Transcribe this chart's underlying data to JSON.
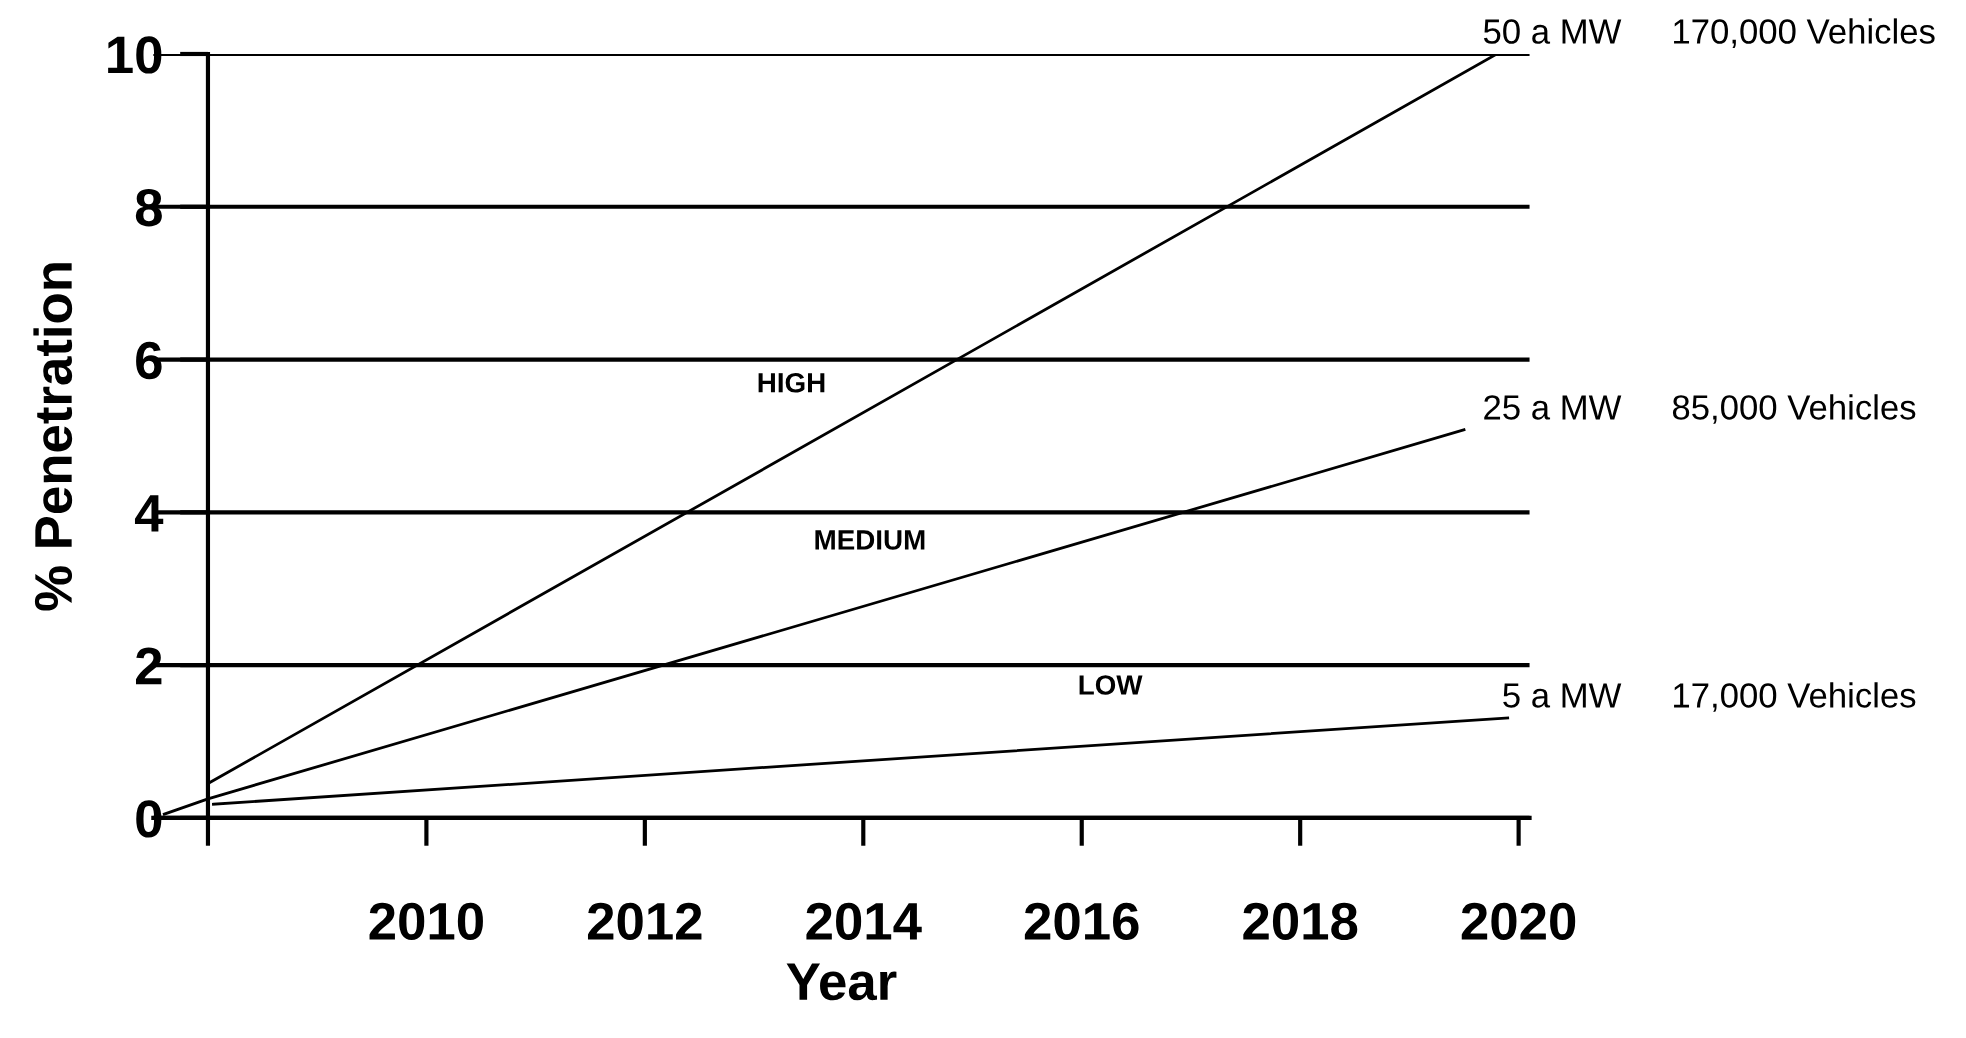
{
  "chart_data": {
    "type": "line",
    "xlabel": "Year",
    "ylabel": "% Penetration",
    "xlim": [
      2007.5,
      2020.1
    ],
    "xticks": [
      {
        "value": 2008,
        "label": null
      },
      2010,
      2012,
      2014,
      2016,
      2018,
      2020
    ],
    "ylim": [
      0,
      10
    ],
    "yticks": [
      0,
      2,
      4,
      6,
      8,
      10
    ],
    "grid": "y",
    "marker": "none",
    "line_style": "solid",
    "series": [
      {
        "name": "HIGH",
        "color": "#000000",
        "x": [
          2008,
          2019.8
        ],
        "values": [
          0.45,
          10
        ]
      },
      {
        "name": "MEDIUM",
        "color": "#000000",
        "x": [
          2007.6,
          2008,
          2019.5
        ],
        "values": [
          0.05,
          0.25,
          5.08
        ]
      },
      {
        "name": "LOW",
        "color": "#000000",
        "x": [
          2008.05,
          2019.9
        ],
        "values": [
          0.18,
          1.31
        ]
      }
    ],
    "annotations": [
      "50 a MW",
      "170,000 Vehicles",
      "25 a MW",
      "85,000 Vehicles",
      "5 a MW",
      "17,000 Vehicles"
    ]
  }
}
